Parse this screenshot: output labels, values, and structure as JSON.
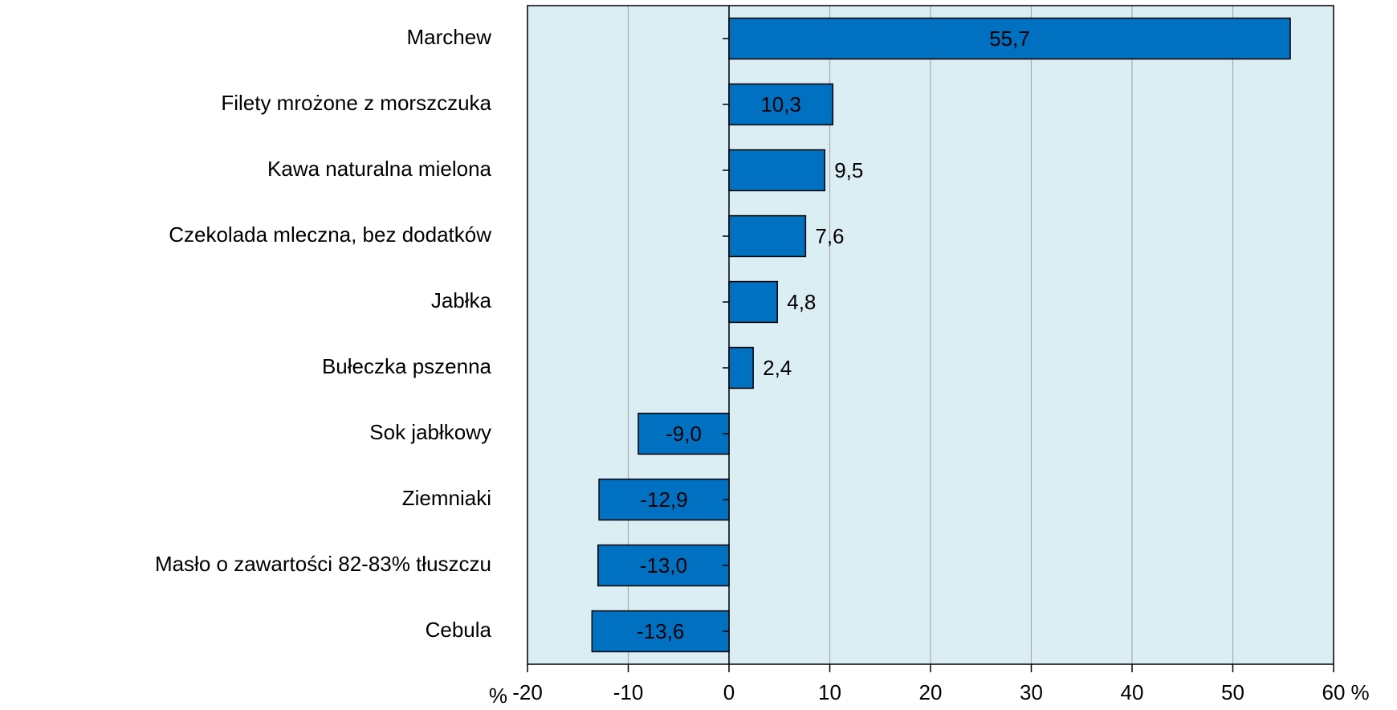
{
  "chart_data": {
    "type": "barh",
    "categories": [
      "Marchew",
      "Filety mrożone z morszczuka",
      "Kawa naturalna mielona",
      "Czekolada mleczna, bez dodatków",
      "Jabłka",
      "Bułeczka pszenna",
      "Sok jabłkowy",
      "Ziemniaki",
      "Masło o zawartości 82-83% tłuszczu",
      "Cebula"
    ],
    "values": [
      55.7,
      10.3,
      9.5,
      7.6,
      4.8,
      2.4,
      -9.0,
      -12.9,
      -13.0,
      -13.6
    ],
    "value_labels": [
      "55,7",
      "10,3",
      "9,5",
      "7,6",
      "4,8",
      "2,4",
      "-9,0",
      "-12,9",
      "-13,0",
      "-13,6"
    ],
    "value_label_positions": [
      "inside",
      "inside",
      "outside",
      "outside",
      "outside",
      "outside",
      "inside",
      "inside",
      "inside",
      "inside"
    ],
    "color": "#0070c0",
    "xlim": [
      -20,
      60
    ],
    "xticks": [
      -20,
      -10,
      0,
      10,
      20,
      30,
      40,
      50,
      60
    ],
    "x_unit": "%",
    "grid": true
  }
}
